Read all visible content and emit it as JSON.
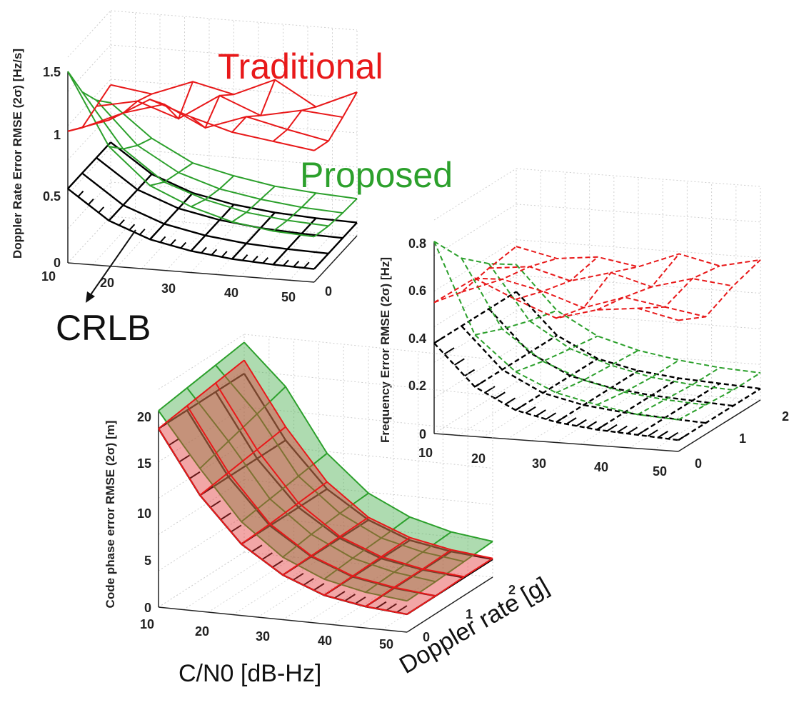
{
  "labels": {
    "traditional": "Traditional",
    "proposed": "Proposed",
    "crlb": "CRLB",
    "xlabel": "C/N0 [dB-Hz]",
    "ylabel": "Doppler rate [g]"
  },
  "colors": {
    "traditional": "#e8191a",
    "proposed": "#2ca02c",
    "crlb": "#000000",
    "grid_mesh": "#b0b0b0",
    "traditional_fill": "#e23a3a",
    "proposed_fill": "#4caf50"
  },
  "chart_data": [
    {
      "type": "surface",
      "zlabel": "Doppler Rate Error RMSE (2σ) [Hz/s]",
      "x_ticks": [
        "10",
        "20",
        "30",
        "40",
        "50"
      ],
      "y_ticks": [
        "0"
      ],
      "z_ticks": [
        "0",
        "0.5",
        "1",
        "1.5"
      ],
      "xlim": [
        10,
        50
      ],
      "ylim": [
        0,
        2
      ],
      "zlim": [
        0,
        1.6
      ],
      "line_style": "solid",
      "grid": true,
      "series": [
        {
          "name": "Traditional",
          "values": [
            [
              1.1,
              1.22,
              1.42,
              1.3,
              1.2,
              1.15,
              1.1
            ],
            [
              1.0,
              1.15,
              1.25,
              1.08,
              1.2,
              1.12,
              1.05
            ],
            [
              1.05,
              1.12,
              1.0,
              1.22,
              1.08,
              1.15,
              1.12
            ],
            [
              1.1,
              1.05,
              1.18,
              1.1,
              1.25,
              1.05,
              1.2
            ]
          ]
        },
        {
          "name": "Proposed",
          "values": [
            [
              1.6,
              1.0,
              0.7,
              0.55,
              0.45,
              0.4,
              0.38
            ],
            [
              1.3,
              0.85,
              0.6,
              0.48,
              0.4,
              0.36,
              0.34
            ],
            [
              1.1,
              0.75,
              0.55,
              0.44,
              0.38,
              0.34,
              0.32
            ],
            [
              0.95,
              0.68,
              0.5,
              0.42,
              0.36,
              0.33,
              0.31
            ]
          ]
        },
        {
          "name": "CRLB",
          "values": [
            [
              0.62,
              0.38,
              0.25,
              0.18,
              0.14,
              0.12,
              0.11
            ],
            [
              0.62,
              0.38,
              0.25,
              0.18,
              0.14,
              0.12,
              0.11
            ],
            [
              0.62,
              0.38,
              0.25,
              0.18,
              0.14,
              0.12,
              0.11
            ],
            [
              0.62,
              0.38,
              0.25,
              0.18,
              0.14,
              0.12,
              0.11
            ]
          ]
        }
      ]
    },
    {
      "type": "surface",
      "zlabel": "Frequency Error RMSE (2σ) [Hz]",
      "x_ticks": [
        "10",
        "20",
        "30",
        "40",
        "50"
      ],
      "y_ticks": [
        "0",
        "1",
        "2"
      ],
      "z_ticks": [
        "0",
        "0.2",
        "0.4",
        "0.6",
        "0.8"
      ],
      "xlim": [
        10,
        50
      ],
      "ylim": [
        0,
        2
      ],
      "zlim": [
        0,
        0.85
      ],
      "line_style": "dashed",
      "grid": true,
      "series": [
        {
          "name": "Traditional",
          "values": [
            [
              0.58,
              0.7,
              0.62,
              0.55,
              0.6,
              0.62,
              0.58
            ],
            [
              0.55,
              0.62,
              0.58,
              0.52,
              0.58,
              0.55,
              0.52
            ],
            [
              0.58,
              0.6,
              0.55,
              0.6,
              0.55,
              0.6,
              0.58
            ],
            [
              0.6,
              0.56,
              0.58,
              0.55,
              0.62,
              0.58,
              0.62
            ]
          ]
        },
        {
          "name": "Proposed",
          "values": [
            [
              0.85,
              0.45,
              0.3,
              0.22,
              0.18,
              0.15,
              0.14
            ],
            [
              0.7,
              0.4,
              0.27,
              0.2,
              0.16,
              0.14,
              0.13
            ],
            [
              0.6,
              0.36,
              0.25,
              0.19,
              0.15,
              0.13,
              0.12
            ],
            [
              0.52,
              0.33,
              0.23,
              0.18,
              0.15,
              0.13,
              0.12
            ]
          ]
        },
        {
          "name": "CRLB",
          "values": [
            [
              0.4,
              0.22,
              0.13,
              0.09,
              0.07,
              0.06,
              0.05
            ],
            [
              0.4,
              0.22,
              0.13,
              0.09,
              0.07,
              0.06,
              0.05
            ],
            [
              0.4,
              0.22,
              0.13,
              0.09,
              0.07,
              0.06,
              0.05
            ],
            [
              0.4,
              0.22,
              0.13,
              0.09,
              0.07,
              0.06,
              0.05
            ]
          ]
        }
      ]
    },
    {
      "type": "surface",
      "zlabel": "Code phase error RMSE (2σ) [m]",
      "xlabel": "C/N0 [dB-Hz]",
      "ylabel": "Doppler rate [g]",
      "x_ticks": [
        "10",
        "20",
        "30",
        "40",
        "50"
      ],
      "y_ticks": [
        "0",
        "1",
        "2"
      ],
      "z_ticks": [
        "0",
        "5",
        "10",
        "15",
        "20"
      ],
      "xlim": [
        10,
        50
      ],
      "ylim": [
        0,
        2
      ],
      "zlim": [
        0,
        22
      ],
      "line_style": "solid",
      "grid": true,
      "series": [
        {
          "name": "Traditional",
          "values": [
            [
              20.0,
              13.0,
              8.0,
              5.0,
              3.2,
              2.4,
              2.0
            ],
            [
              20.5,
              13.5,
              8.2,
              5.1,
              3.3,
              2.5,
              2.0
            ],
            [
              21.0,
              14.0,
              8.5,
              5.2,
              3.4,
              2.5,
              2.1
            ],
            [
              21.5,
              14.5,
              8.8,
              5.3,
              3.5,
              2.6,
              2.1
            ]
          ]
        },
        {
          "name": "Proposed",
          "values": [
            [
              22.0,
              16.0,
              10.5,
              7.0,
              5.0,
              4.0,
              3.5
            ],
            [
              22.5,
              17.0,
              11.0,
              7.5,
              5.3,
              4.2,
              3.6
            ],
            [
              23.0,
              18.0,
              11.5,
              7.8,
              5.5,
              4.4,
              3.8
            ],
            [
              23.5,
              19.0,
              12.0,
              8.0,
              5.8,
              4.6,
              4.0
            ]
          ]
        },
        {
          "name": "CRLB",
          "values": [
            [
              20.0,
              13.0,
              8.0,
              5.0,
              3.2,
              2.4,
              2.0
            ],
            [
              20.0,
              13.0,
              8.0,
              5.0,
              3.2,
              2.4,
              2.0
            ],
            [
              20.0,
              13.0,
              8.0,
              5.0,
              3.2,
              2.4,
              2.0
            ],
            [
              20.0,
              13.0,
              8.0,
              5.0,
              3.2,
              2.4,
              2.0
            ]
          ]
        }
      ]
    }
  ]
}
